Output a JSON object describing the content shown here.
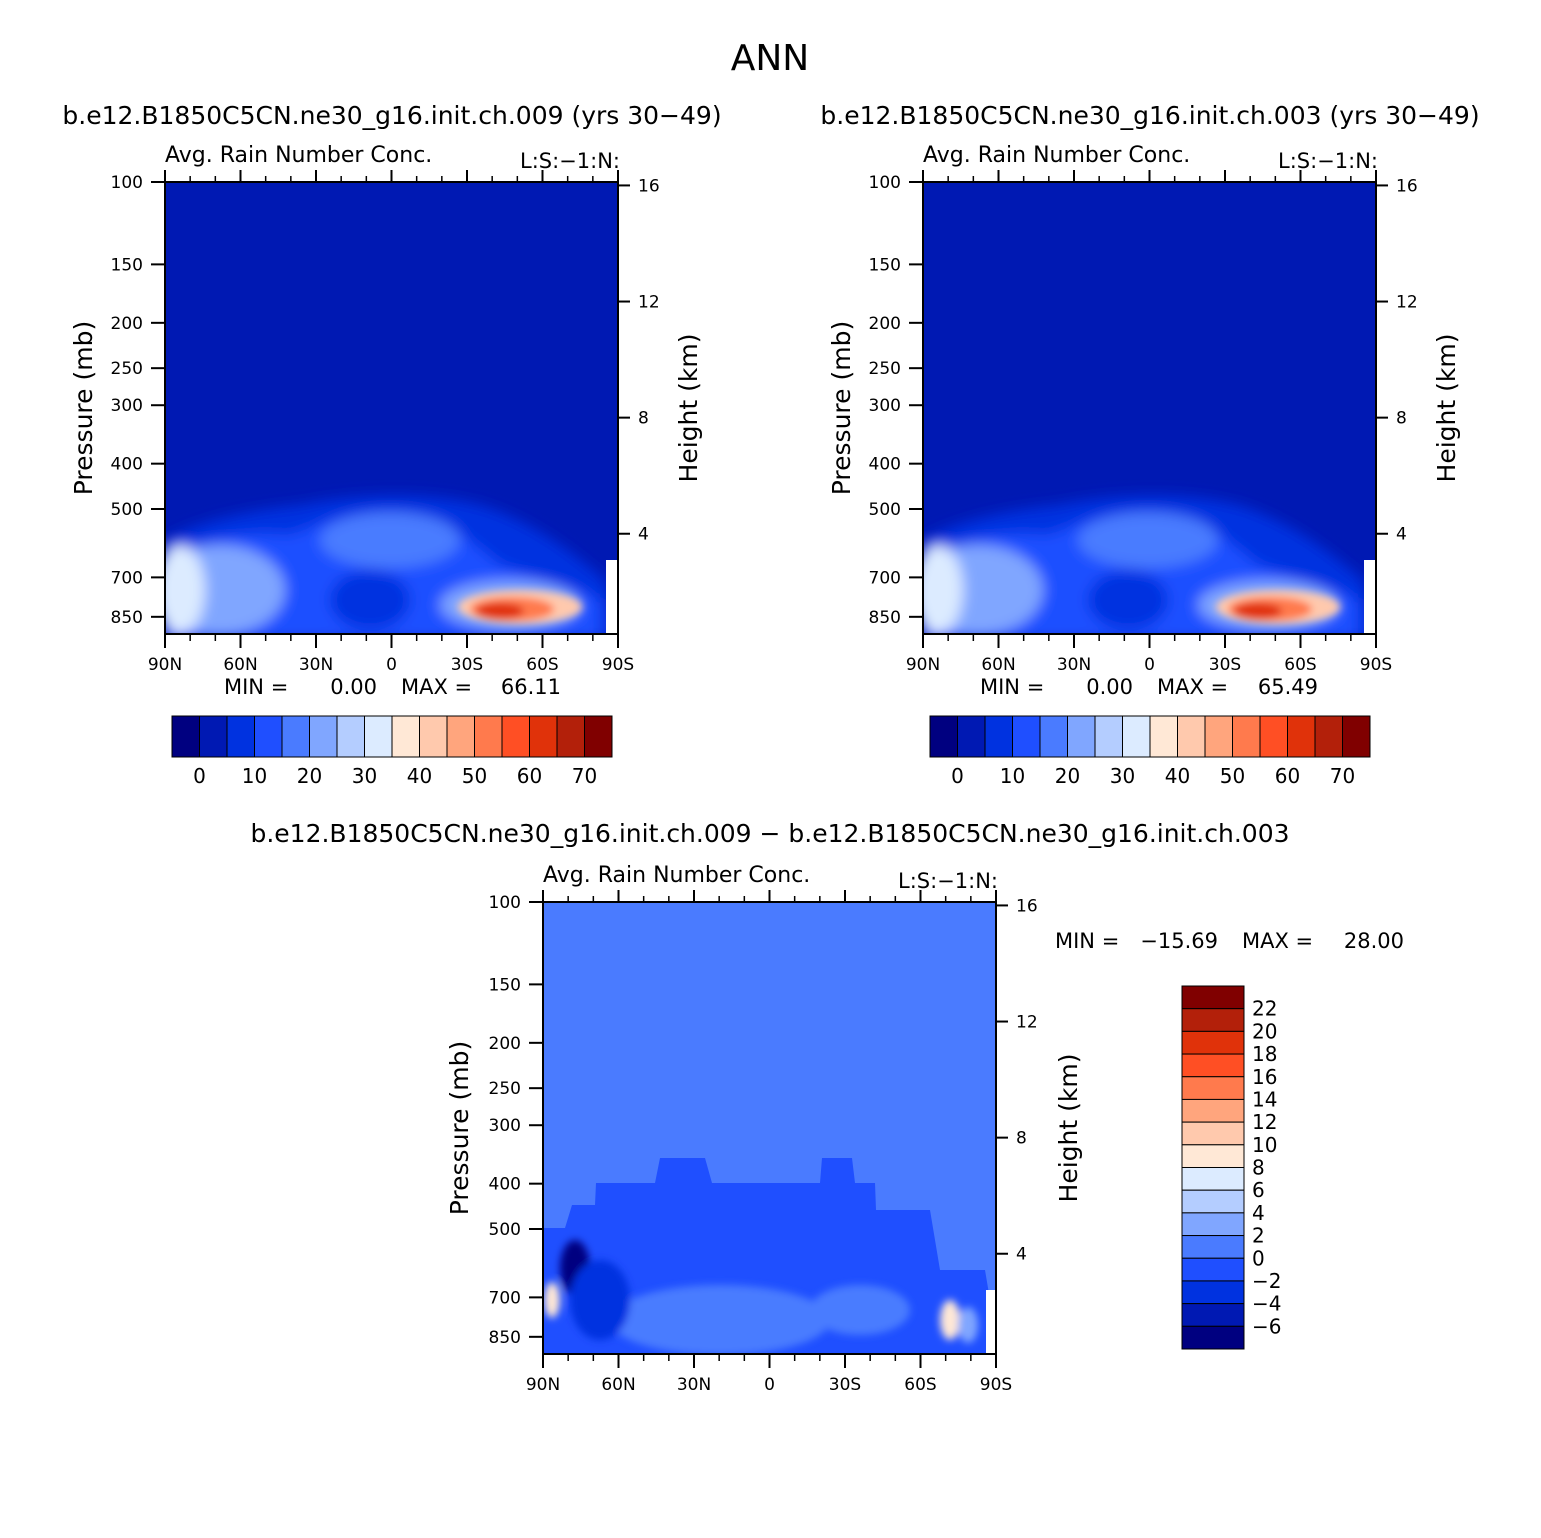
{
  "figure": {
    "title": "ANN"
  },
  "colors": {
    "abs_scale": [
      "#000080",
      "#0019b3",
      "#0032e0",
      "#1f4fff",
      "#4a7bff",
      "#80a6ff",
      "#b4cdff",
      "#dcebff",
      "#ffe8d6",
      "#ffc9ad",
      "#ffa57d",
      "#ff7a4d",
      "#ff4f24",
      "#e0320a",
      "#b3200a",
      "#800000"
    ],
    "diff_scale": [
      "#000080",
      "#0019b3",
      "#0032e0",
      "#1f4fff",
      "#4a7bff",
      "#80a6ff",
      "#b4cdff",
      "#dcebff",
      "#ffe8d6",
      "#ffc9ad",
      "#ffa57d",
      "#ff7a4d",
      "#ff4f24",
      "#e0320a",
      "#b3200a",
      "#800000"
    ]
  },
  "chart_data": [
    {
      "type": "heatmap",
      "title": "b.e12.B1850C5CN.ne30_g16.init.ch.009 (yrs 30−49)",
      "subtitle": "Avg. Rain Number Conc.",
      "corner_label": "L:S:−1:N:",
      "xlabel": "",
      "ylabel": "Pressure (mb)",
      "ylabel_right": "Height (km)",
      "x_ticks": [
        "90N",
        "60N",
        "30N",
        "0",
        "30S",
        "60S",
        "90S"
      ],
      "x_range": [
        90,
        -90
      ],
      "y_ticks": [
        "100",
        "150",
        "200",
        "250",
        "300",
        "400",
        "500",
        "700",
        "850"
      ],
      "y_tick_values": [
        100,
        150,
        200,
        250,
        300,
        400,
        500,
        700,
        850
      ],
      "y_range": [
        100,
        925
      ],
      "y_scale": "log",
      "y_right_ticks": [
        "16",
        "12",
        "8",
        "4"
      ],
      "y_right_values": [
        16,
        12,
        8,
        4
      ],
      "min_label": "MIN =",
      "min_value": "0.00",
      "max_label": "MAX =",
      "max_value": "66.11",
      "colorbar_orientation": "horizontal",
      "colorbar_labels": [
        "0",
        "10",
        "20",
        "30",
        "40",
        "50",
        "60",
        "70"
      ],
      "features": [
        {
          "lat": -45,
          "p": 850,
          "value": 66.11
        },
        {
          "lat": 87,
          "p": 720,
          "value": 35
        },
        {
          "lat": 0,
          "p": 550,
          "value": 15
        }
      ]
    },
    {
      "type": "heatmap",
      "title": "b.e12.B1850C5CN.ne30_g16.init.ch.003 (yrs 30−49)",
      "subtitle": "Avg. Rain Number Conc.",
      "corner_label": "L:S:−1:N:",
      "xlabel": "",
      "ylabel": "Pressure (mb)",
      "ylabel_right": "Height (km)",
      "x_ticks": [
        "90N",
        "60N",
        "30N",
        "0",
        "30S",
        "60S",
        "90S"
      ],
      "x_range": [
        90,
        -90
      ],
      "y_ticks": [
        "100",
        "150",
        "200",
        "250",
        "300",
        "400",
        "500",
        "700",
        "850"
      ],
      "y_tick_values": [
        100,
        150,
        200,
        250,
        300,
        400,
        500,
        700,
        850
      ],
      "y_range": [
        100,
        925
      ],
      "y_scale": "log",
      "y_right_ticks": [
        "16",
        "12",
        "8",
        "4"
      ],
      "y_right_values": [
        16,
        12,
        8,
        4
      ],
      "min_label": "MIN =",
      "min_value": "0.00",
      "max_label": "MAX =",
      "max_value": "65.49",
      "colorbar_orientation": "horizontal",
      "colorbar_labels": [
        "0",
        "10",
        "20",
        "30",
        "40",
        "50",
        "60",
        "70"
      ],
      "features": [
        {
          "lat": -45,
          "p": 850,
          "value": 65.49
        },
        {
          "lat": 87,
          "p": 720,
          "value": 35
        },
        {
          "lat": 0,
          "p": 550,
          "value": 15
        }
      ]
    },
    {
      "type": "heatmap",
      "title": "b.e12.B1850C5CN.ne30_g16.init.ch.009 − b.e12.B1850C5CN.ne30_g16.init.ch.003",
      "subtitle": "Avg. Rain Number Conc.",
      "corner_label": "L:S:−1:N:",
      "xlabel": "",
      "ylabel": "Pressure (mb)",
      "ylabel_right": "Height (km)",
      "x_ticks": [
        "90N",
        "60N",
        "30N",
        "0",
        "30S",
        "60S",
        "90S"
      ],
      "x_range": [
        90,
        -90
      ],
      "y_ticks": [
        "100",
        "150",
        "200",
        "250",
        "300",
        "400",
        "500",
        "700",
        "850"
      ],
      "y_tick_values": [
        100,
        150,
        200,
        250,
        300,
        400,
        500,
        700,
        850
      ],
      "y_range": [
        100,
        925
      ],
      "y_scale": "log",
      "y_right_ticks": [
        "16",
        "12",
        "8",
        "4"
      ],
      "y_right_values": [
        16,
        12,
        8,
        4
      ],
      "min_label": "MIN =",
      "min_value": "−15.69",
      "max_label": "MAX =",
      "max_value": "28.00",
      "colorbar_orientation": "vertical",
      "colorbar_labels": [
        "22",
        "20",
        "18",
        "16",
        "14",
        "12",
        "10",
        "8",
        "6",
        "4",
        "2",
        "0",
        "−2",
        "−4",
        "−6"
      ],
      "features": [
        {
          "lat": 78,
          "p": 620,
          "value": -15.69
        },
        {
          "lat": 88,
          "p": 720,
          "value": 8
        },
        {
          "lat": -70,
          "p": 800,
          "value": 28.0
        }
      ]
    }
  ]
}
